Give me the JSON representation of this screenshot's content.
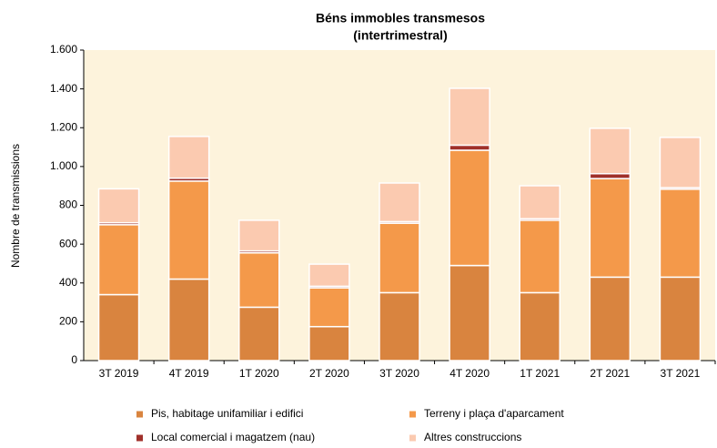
{
  "chart_data": {
    "type": "stacked_bar",
    "title": "Béns immobles transmesos",
    "subtitle": "(intertrimestral)",
    "y_label": "Nombre de transmissions",
    "categories": [
      "3T 2019",
      "4T 2019",
      "1T 2020",
      "2T 2020",
      "3T 2020",
      "4T 2020",
      "1T 2021",
      "2T 2021",
      "3T 2021"
    ],
    "series": [
      {
        "name": "Pis, habitage unifamiliar i edifici",
        "color": "#d9843f",
        "values": [
          340,
          420,
          275,
          175,
          350,
          490,
          350,
          430,
          430
        ]
      },
      {
        "name": "Terreny i plaça d'aparcament",
        "color": "#f4994a",
        "values": [
          360,
          505,
          280,
          200,
          358,
          594,
          373,
          508,
          453
        ]
      },
      {
        "name": "Local comercial i magatzem (nau)",
        "color": "#a0302a",
        "values": [
          10,
          15,
          10,
          8,
          8,
          26,
          8,
          25,
          8
        ]
      },
      {
        "name": "Altres construccions",
        "color": "#fbcab0",
        "values": [
          175,
          215,
          158,
          114,
          199,
          293,
          170,
          234,
          259
        ]
      }
    ],
    "ylim": [
      0,
      1600
    ],
    "yticks": [
      0,
      200,
      400,
      600,
      800,
      {
        "value": 1000,
        "label": "1.000"
      },
      {
        "value": 1200,
        "label": "1.200"
      },
      {
        "value": 1400,
        "label": "1.400"
      },
      {
        "value": 1600,
        "label": "1.600"
      }
    ],
    "plot_background": "#fdf3dc"
  }
}
